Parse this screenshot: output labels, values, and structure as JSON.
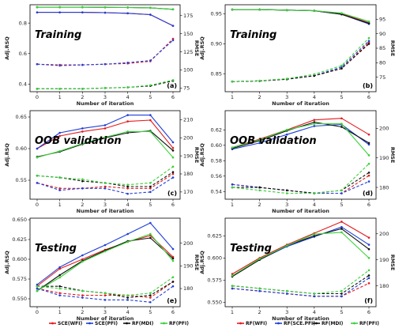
{
  "chart_data": [
    {
      "type": "line",
      "panel_label": "(a)",
      "title": "Training",
      "xlabel": "Number of iteration",
      "ylabel_left": "Adj.RSQ",
      "ylabel_right": "RMSE",
      "x": [
        0,
        1,
        2,
        3,
        4,
        5,
        6
      ],
      "ylim_left": [
        0.35,
        0.92
      ],
      "ylim_right": [
        70,
        190
      ],
      "yticks_left": [
        "0.4",
        "0.6",
        "0.8"
      ],
      "yticks_right": [
        "75",
        "100",
        "125",
        "150",
        "175"
      ],
      "series": [
        {
          "name": "SCE(WFI)",
          "color": "#e41a1c",
          "axis": "left",
          "values": [
            0.87,
            0.87,
            0.87,
            0.868,
            0.864,
            0.855,
            0.782
          ]
        },
        {
          "name": "SCE(PFI)",
          "color": "#1f3fd8",
          "axis": "left",
          "values": [
            0.87,
            0.87,
            0.87,
            0.868,
            0.864,
            0.855,
            0.782
          ]
        },
        {
          "name": "RF(MDI)",
          "color": "#111111",
          "axis": "left",
          "values": [
            0.904,
            0.904,
            0.904,
            0.903,
            0.902,
            0.9,
            0.89
          ]
        },
        {
          "name": "RF(PFI)",
          "color": "#3ad13a",
          "axis": "left",
          "values": [
            0.904,
            0.904,
            0.904,
            0.903,
            0.902,
            0.9,
            0.89
          ]
        },
        {
          "name": "SCE(WFI)",
          "color": "#e41a1c",
          "axis": "right",
          "dashed": true,
          "values": [
            108,
            107,
            107,
            108,
            109,
            112,
            143
          ]
        },
        {
          "name": "SCE(PFI)",
          "color": "#1f3fd8",
          "axis": "right",
          "dashed": true,
          "values": [
            108,
            106,
            107,
            108,
            110,
            113,
            141
          ]
        },
        {
          "name": "RF(MDI)",
          "color": "#111111",
          "axis": "right",
          "dashed": true,
          "values": [
            74,
            74,
            74,
            75,
            76,
            78,
            85
          ]
        },
        {
          "name": "RF(PFI)",
          "color": "#3ad13a",
          "axis": "right",
          "dashed": true,
          "values": [
            74,
            74,
            74,
            75,
            76,
            79,
            86
          ]
        }
      ]
    },
    {
      "type": "line",
      "panel_label": "(b)",
      "title": "Training",
      "xlabel": "Number of iteration",
      "ylabel_left": "Adj.RSQ",
      "ylabel_right": "RMSE",
      "x": [
        1,
        2,
        3,
        4,
        5,
        6
      ],
      "ylim_left": [
        0.82,
        0.965
      ],
      "ylim_right": [
        70,
        100
      ],
      "yticks_left": [
        "0.85",
        "0.90",
        "0.95"
      ],
      "yticks_right": [
        "75",
        "80",
        "85",
        "90",
        "95"
      ],
      "series": [
        {
          "name": "RF(WFI)",
          "color": "#e41a1c",
          "axis": "left",
          "values": [
            0.957,
            0.957,
            0.956,
            0.955,
            0.95,
            0.935
          ]
        },
        {
          "name": "RF(SCE.PFI)",
          "color": "#1f3fd8",
          "axis": "left",
          "values": [
            0.957,
            0.957,
            0.956,
            0.955,
            0.949,
            0.933
          ]
        },
        {
          "name": "RF(MDI)",
          "color": "#111111",
          "axis": "left",
          "values": [
            0.957,
            0.957,
            0.956,
            0.955,
            0.949,
            0.934
          ]
        },
        {
          "name": "RF(PFI)",
          "color": "#3ad13a",
          "axis": "left",
          "values": [
            0.957,
            0.957,
            0.956,
            0.955,
            0.951,
            0.937
          ]
        },
        {
          "name": "RF(WFI)",
          "color": "#e41a1c",
          "axis": "right",
          "dashed": true,
          "values": [
            73.5,
            73.7,
            74.3,
            75.5,
            78.0,
            87.0
          ]
        },
        {
          "name": "RF(SCE.PFI)",
          "color": "#1f3fd8",
          "axis": "right",
          "dashed": true,
          "values": [
            73.5,
            73.7,
            74.3,
            75.5,
            78.5,
            87.5
          ]
        },
        {
          "name": "RF(MDI)",
          "color": "#111111",
          "axis": "right",
          "dashed": true,
          "values": [
            73.5,
            73.7,
            74.3,
            75.5,
            78.0,
            86.5
          ]
        },
        {
          "name": "RF(PFI)",
          "color": "#3ad13a",
          "axis": "right",
          "dashed": true,
          "values": [
            73.5,
            73.8,
            74.5,
            76.0,
            79.0,
            88.5
          ]
        }
      ]
    },
    {
      "type": "line",
      "panel_label": "(c)",
      "title": "OOB validation",
      "xlabel": "Number of iteration",
      "ylabel_left": "Adj.RSQ",
      "ylabel_right": "RMSE",
      "x": [
        0,
        1,
        2,
        3,
        4,
        5,
        6
      ],
      "ylim_left": [
        0.52,
        0.66
      ],
      "ylim_right": [
        166,
        215
      ],
      "yticks_left": [
        "0.55",
        "0.60",
        "0.65"
      ],
      "yticks_right": [
        "170",
        "180",
        "190",
        "200",
        "210"
      ],
      "series": [
        {
          "name": "SCE(WFI)",
          "color": "#e41a1c",
          "axis": "left",
          "values": [
            0.6,
            0.62,
            0.627,
            0.632,
            0.643,
            0.645,
            0.601
          ]
        },
        {
          "name": "SCE(PFI)",
          "color": "#1f3fd8",
          "axis": "left",
          "values": [
            0.6,
            0.625,
            0.632,
            0.637,
            0.653,
            0.653,
            0.61
          ]
        },
        {
          "name": "RF(MDI)",
          "color": "#111111",
          "axis": "left",
          "values": [
            0.587,
            0.595,
            0.607,
            0.617,
            0.625,
            0.628,
            0.597
          ]
        },
        {
          "name": "RF(PFI)",
          "color": "#3ad13a",
          "axis": "left",
          "values": [
            0.586,
            0.596,
            0.608,
            0.618,
            0.627,
            0.627,
            0.586
          ]
        },
        {
          "name": "SCE(WFI)",
          "color": "#e41a1c",
          "axis": "right",
          "dashed": true,
          "values": [
            175,
            172,
            172,
            173,
            172,
            172,
            180
          ]
        },
        {
          "name": "SCE(PFI)",
          "color": "#1f3fd8",
          "axis": "right",
          "dashed": true,
          "values": [
            175,
            171,
            172,
            172,
            169,
            170,
            178
          ]
        },
        {
          "name": "RF(MDI)",
          "color": "#111111",
          "axis": "right",
          "dashed": true,
          "values": [
            179,
            178,
            176,
            175,
            173,
            173,
            181
          ]
        },
        {
          "name": "RF(PFI)",
          "color": "#3ad13a",
          "axis": "right",
          "dashed": true,
          "values": [
            179,
            178,
            177,
            175,
            174,
            175,
            184
          ]
        }
      ]
    },
    {
      "type": "line",
      "panel_label": "(d)",
      "title": "OOB validation",
      "xlabel": "Number of iteration",
      "ylabel_left": "Adj.RSQ",
      "ylabel_right": "RMSE",
      "x": [
        1,
        2,
        3,
        4,
        5,
        6
      ],
      "ylim_left": [
        0.53,
        0.645
      ],
      "ylim_right": [
        176,
        206
      ],
      "yticks_left": [
        "0.54",
        "0.56",
        "0.58",
        "0.60",
        "0.62"
      ],
      "yticks_right": [
        "180",
        "190",
        "200"
      ],
      "series": [
        {
          "name": "RF(WFI)",
          "color": "#e41a1c",
          "axis": "left",
          "values": [
            0.597,
            0.608,
            0.62,
            0.633,
            0.635,
            0.614
          ]
        },
        {
          "name": "RF(SCE.PFI)",
          "color": "#1f3fd8",
          "axis": "left",
          "values": [
            0.595,
            0.603,
            0.614,
            0.625,
            0.627,
            0.601
          ]
        },
        {
          "name": "RF(MDI)",
          "color": "#111111",
          "axis": "left",
          "values": [
            0.596,
            0.606,
            0.619,
            0.63,
            0.624,
            0.603
          ]
        },
        {
          "name": "RF(PFI)",
          "color": "#3ad13a",
          "axis": "left",
          "values": [
            0.597,
            0.607,
            0.62,
            0.628,
            0.628,
            0.587
          ]
        },
        {
          "name": "RF(WFI)",
          "color": "#e41a1c",
          "axis": "right",
          "dashed": true,
          "values": [
            181,
            180,
            179,
            178,
            178,
            184
          ]
        },
        {
          "name": "RF(SCE.PFI)",
          "color": "#1f3fd8",
          "axis": "right",
          "dashed": true,
          "values": [
            181,
            180,
            179,
            178,
            178,
            182
          ]
        },
        {
          "name": "RF(MDI)",
          "color": "#111111",
          "axis": "right",
          "dashed": true,
          "values": [
            180,
            180,
            179,
            178,
            179,
            185
          ]
        },
        {
          "name": "RF(PFI)",
          "color": "#3ad13a",
          "axis": "right",
          "dashed": true,
          "values": [
            180,
            179,
            178,
            178,
            179,
            188
          ]
        }
      ]
    },
    {
      "type": "line",
      "panel_label": "(e)",
      "title": "Testing",
      "xlabel": "Number of iteration",
      "ylabel_left": "Adj.RSQ",
      "ylabel_right": "RMSE",
      "x": [
        0,
        1,
        2,
        3,
        4,
        5,
        6
      ],
      "ylim_left": [
        0.54,
        0.652
      ],
      "ylim_right": [
        172,
        211
      ],
      "yticks_left": [
        "0.550",
        "0.575",
        "0.600",
        "0.625",
        "0.650"
      ],
      "yticks_right": [
        "180",
        "190",
        "200"
      ],
      "series": [
        {
          "name": "SCE(WFI)",
          "color": "#e41a1c",
          "axis": "left",
          "values": [
            0.566,
            0.588,
            0.6,
            0.612,
            0.622,
            0.63,
            0.603
          ]
        },
        {
          "name": "SCE(PFI)",
          "color": "#1f3fd8",
          "axis": "left",
          "values": [
            0.568,
            0.59,
            0.605,
            0.618,
            0.632,
            0.646,
            0.613
          ]
        },
        {
          "name": "RF(MDI)",
          "color": "#111111",
          "axis": "left",
          "values": [
            0.56,
            0.58,
            0.598,
            0.611,
            0.623,
            0.627,
            0.601
          ]
        },
        {
          "name": "RF(PFI)",
          "color": "#3ad13a",
          "axis": "left",
          "values": [
            0.56,
            0.577,
            0.597,
            0.61,
            0.622,
            0.632,
            0.598
          ]
        },
        {
          "name": "SCE(WFI)",
          "color": "#e41a1c",
          "axis": "right",
          "dashed": true,
          "values": [
            180,
            178,
            177,
            177,
            177,
            176,
            183
          ]
        },
        {
          "name": "SCE(PFI)",
          "color": "#1f3fd8",
          "axis": "right",
          "dashed": true,
          "values": [
            180,
            177,
            176,
            175,
            175,
            174,
            181
          ]
        },
        {
          "name": "RF(MDI)",
          "color": "#111111",
          "axis": "right",
          "dashed": true,
          "values": [
            181,
            181,
            179,
            178,
            176,
            177,
            183
          ]
        },
        {
          "name": "RF(PFI)",
          "color": "#3ad13a",
          "axis": "right",
          "dashed": true,
          "values": [
            181,
            180,
            179,
            178,
            177,
            178,
            185
          ]
        }
      ]
    },
    {
      "type": "line",
      "panel_label": "(f)",
      "title": "Testing",
      "xlabel": "Number of iteration",
      "ylabel_left": "Adj.RSQ",
      "ylabel_right": "RMSE",
      "x": [
        1,
        2,
        3,
        4,
        5,
        6
      ],
      "ylim_left": [
        0.545,
        0.645
      ],
      "ylim_right": [
        172,
        206
      ],
      "yticks_left": [
        "0.550",
        "0.575",
        "0.600",
        "0.625"
      ],
      "yticks_right": [
        "180",
        "190",
        "200"
      ],
      "series": [
        {
          "name": "RF(WFI)",
          "color": "#e41a1c",
          "axis": "left",
          "values": [
            0.582,
            0.6,
            0.615,
            0.628,
            0.641,
            0.623
          ]
        },
        {
          "name": "RF(SCE.PFI)",
          "color": "#1f3fd8",
          "axis": "left",
          "values": [
            0.58,
            0.598,
            0.613,
            0.624,
            0.635,
            0.615
          ]
        },
        {
          "name": "RF(MDI)",
          "color": "#111111",
          "axis": "left",
          "values": [
            0.579,
            0.598,
            0.614,
            0.625,
            0.633,
            0.61
          ]
        },
        {
          "name": "RF(PFI)",
          "color": "#3ad13a",
          "axis": "left",
          "values": [
            0.58,
            0.599,
            0.614,
            0.627,
            0.629,
            0.6
          ]
        },
        {
          "name": "RF(WFI)",
          "color": "#e41a1c",
          "axis": "right",
          "dashed": true,
          "values": [
            179,
            178,
            177,
            176,
            176,
            181
          ]
        },
        {
          "name": "RF(SCE.PFI)",
          "color": "#1f3fd8",
          "axis": "right",
          "dashed": true,
          "values": [
            179,
            178,
            177,
            176,
            176,
            183
          ]
        },
        {
          "name": "RF(MDI)",
          "color": "#111111",
          "axis": "right",
          "dashed": true,
          "values": [
            180,
            179,
            178,
            177,
            177,
            184
          ]
        },
        {
          "name": "RF(PFI)",
          "color": "#3ad13a",
          "axis": "right",
          "dashed": true,
          "values": [
            180,
            179,
            178,
            177,
            178,
            186
          ]
        }
      ]
    }
  ],
  "legends": [
    {
      "items": [
        {
          "label": "SCE(WFI)",
          "color": "#e41a1c"
        },
        {
          "label": "SCE(PFI)",
          "color": "#1f3fd8"
        },
        {
          "label": "RF(MDI)",
          "color": "#111111"
        },
        {
          "label": "RF(PFI)",
          "color": "#3ad13a"
        }
      ]
    },
    {
      "items": [
        {
          "label": "RF(WFI)",
          "color": "#e41a1c"
        },
        {
          "label": "RF(SCE.PFI)",
          "color": "#1f3fd8"
        },
        {
          "label": "RF(MDI)",
          "color": "#111111"
        },
        {
          "label": "RF(PFI)",
          "color": "#3ad13a"
        }
      ]
    }
  ]
}
